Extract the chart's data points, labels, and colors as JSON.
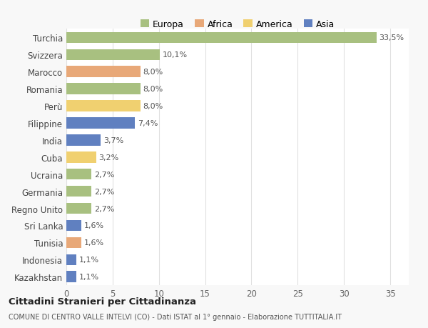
{
  "countries": [
    "Turchia",
    "Svizzera",
    "Marocco",
    "Romania",
    "Perù",
    "Filippine",
    "India",
    "Cuba",
    "Ucraina",
    "Germania",
    "Regno Unito",
    "Sri Lanka",
    "Tunisia",
    "Indonesia",
    "Kazakhstan"
  ],
  "values": [
    33.5,
    10.1,
    8.0,
    8.0,
    8.0,
    7.4,
    3.7,
    3.2,
    2.7,
    2.7,
    2.7,
    1.6,
    1.6,
    1.1,
    1.1
  ],
  "labels": [
    "33,5%",
    "10,1%",
    "8,0%",
    "8,0%",
    "8,0%",
    "7,4%",
    "3,7%",
    "3,2%",
    "2,7%",
    "2,7%",
    "2,7%",
    "1,6%",
    "1,6%",
    "1,1%",
    "1,1%"
  ],
  "continents": [
    "Europa",
    "Europa",
    "Africa",
    "Europa",
    "America",
    "Asia",
    "Asia",
    "America",
    "Europa",
    "Europa",
    "Europa",
    "Asia",
    "Africa",
    "Asia",
    "Asia"
  ],
  "continent_colors": {
    "Europa": "#a8c080",
    "Africa": "#e8a878",
    "America": "#f0d070",
    "Asia": "#6080c0"
  },
  "legend_labels": [
    "Europa",
    "Africa",
    "America",
    "Asia"
  ],
  "legend_colors": [
    "#a8c080",
    "#e8a878",
    "#f0d070",
    "#6080c0"
  ],
  "title": "Cittadini Stranieri per Cittadinanza",
  "subtitle": "COMUNE DI CENTRO VALLE INTELVI (CO) - Dati ISTAT al 1° gennaio - Elaborazione TUTTITALIA.IT",
  "xlim": [
    0,
    37
  ],
  "xticks": [
    0,
    5,
    10,
    15,
    20,
    25,
    30,
    35
  ],
  "background_color": "#f8f8f8",
  "bar_background": "#ffffff",
  "grid_color": "#e0e0e0"
}
